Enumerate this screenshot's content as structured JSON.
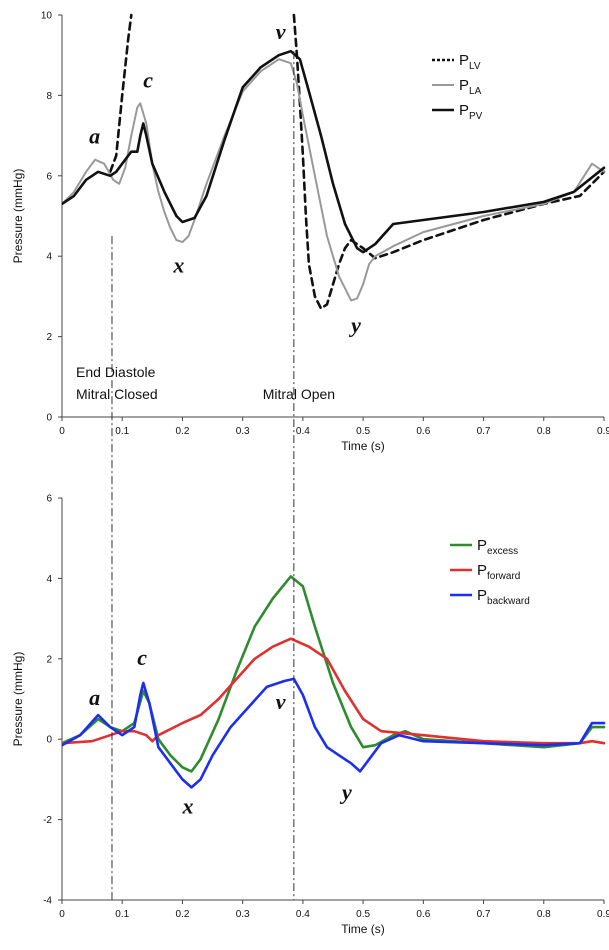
{
  "chart_data": [
    {
      "type": "line",
      "xlabel": "Time (s)",
      "ylabel": "Pressure (mmHg)",
      "xlim": [
        0,
        0.9
      ],
      "ylim": [
        0,
        10
      ],
      "xticks": [
        "0",
        "0.1",
        "0.2",
        "0.3",
        "0.4",
        "0.5",
        "0.6",
        "0.7",
        "0.8",
        "0.9"
      ],
      "yticks": [
        "0",
        "2",
        "4",
        "6",
        "8",
        "10"
      ],
      "series": [
        {
          "name": "P",
          "sub": "LV",
          "color": "#111111",
          "style": "dashed",
          "points": [
            [
              0.08,
              6.1
            ],
            [
              0.09,
              6.5
            ],
            [
              0.1,
              8.0
            ],
            [
              0.11,
              9.4
            ],
            [
              0.115,
              10.0
            ]
          ],
          "points2": [
            [
              0.385,
              10.0
            ],
            [
              0.39,
              9.0
            ],
            [
              0.395,
              7.8
            ],
            [
              0.4,
              6.5
            ],
            [
              0.405,
              5.0
            ],
            [
              0.41,
              3.8
            ],
            [
              0.42,
              3.0
            ],
            [
              0.43,
              2.7
            ],
            [
              0.44,
              2.8
            ],
            [
              0.45,
              3.3
            ],
            [
              0.46,
              3.8
            ],
            [
              0.47,
              4.2
            ],
            [
              0.48,
              4.4
            ],
            [
              0.5,
              4.2
            ],
            [
              0.52,
              3.95
            ],
            [
              0.55,
              4.1
            ],
            [
              0.6,
              4.4
            ],
            [
              0.7,
              4.9
            ],
            [
              0.8,
              5.3
            ],
            [
              0.86,
              5.5
            ],
            [
              0.9,
              6.1
            ]
          ]
        },
        {
          "name": "P",
          "sub": "LA",
          "color": "#999999",
          "style": "solid",
          "points": [
            [
              0.0,
              5.3
            ],
            [
              0.02,
              5.6
            ],
            [
              0.04,
              6.1
            ],
            [
              0.055,
              6.4
            ],
            [
              0.07,
              6.3
            ],
            [
              0.085,
              5.9
            ],
            [
              0.095,
              5.8
            ],
            [
              0.105,
              6.2
            ],
            [
              0.115,
              7.0
            ],
            [
              0.125,
              7.7
            ],
            [
              0.13,
              7.8
            ],
            [
              0.14,
              7.3
            ],
            [
              0.15,
              6.3
            ],
            [
              0.16,
              5.6
            ],
            [
              0.17,
              5.1
            ],
            [
              0.18,
              4.7
            ],
            [
              0.19,
              4.4
            ],
            [
              0.2,
              4.35
            ],
            [
              0.21,
              4.5
            ],
            [
              0.22,
              4.9
            ],
            [
              0.24,
              5.8
            ],
            [
              0.27,
              7.0
            ],
            [
              0.3,
              8.1
            ],
            [
              0.33,
              8.6
            ],
            [
              0.36,
              8.9
            ],
            [
              0.38,
              8.8
            ],
            [
              0.39,
              8.3
            ],
            [
              0.4,
              7.5
            ],
            [
              0.42,
              6.0
            ],
            [
              0.44,
              4.5
            ],
            [
              0.46,
              3.5
            ],
            [
              0.48,
              2.9
            ],
            [
              0.49,
              2.95
            ],
            [
              0.5,
              3.3
            ],
            [
              0.51,
              3.8
            ],
            [
              0.52,
              4.0
            ],
            [
              0.55,
              4.25
            ],
            [
              0.6,
              4.6
            ],
            [
              0.7,
              5.0
            ],
            [
              0.8,
              5.3
            ],
            [
              0.85,
              5.6
            ],
            [
              0.88,
              6.3
            ],
            [
              0.9,
              6.1
            ]
          ]
        },
        {
          "name": "P",
          "sub": "PV",
          "color": "#111111",
          "style": "solid",
          "points": [
            [
              0.0,
              5.3
            ],
            [
              0.02,
              5.5
            ],
            [
              0.04,
              5.9
            ],
            [
              0.06,
              6.1
            ],
            [
              0.08,
              6.0
            ],
            [
              0.09,
              6.1
            ],
            [
              0.1,
              6.3
            ],
            [
              0.115,
              6.6
            ],
            [
              0.125,
              6.6
            ],
            [
              0.13,
              7.0
            ],
            [
              0.135,
              7.3
            ],
            [
              0.14,
              7.0
            ],
            [
              0.15,
              6.3
            ],
            [
              0.17,
              5.6
            ],
            [
              0.19,
              5.0
            ],
            [
              0.2,
              4.85
            ],
            [
              0.22,
              4.95
            ],
            [
              0.24,
              5.5
            ],
            [
              0.27,
              6.9
            ],
            [
              0.3,
              8.2
            ],
            [
              0.33,
              8.7
            ],
            [
              0.36,
              9.0
            ],
            [
              0.38,
              9.1
            ],
            [
              0.395,
              8.9
            ],
            [
              0.41,
              8.1
            ],
            [
              0.43,
              7.0
            ],
            [
              0.45,
              5.8
            ],
            [
              0.47,
              4.8
            ],
            [
              0.49,
              4.2
            ],
            [
              0.5,
              4.1
            ],
            [
              0.52,
              4.3
            ],
            [
              0.55,
              4.8
            ],
            [
              0.6,
              4.9
            ],
            [
              0.7,
              5.1
            ],
            [
              0.8,
              5.35
            ],
            [
              0.85,
              5.6
            ],
            [
              0.9,
              6.2
            ]
          ]
        }
      ],
      "wave_labels": [
        {
          "text": "a",
          "x": 0.045,
          "y": 6.8
        },
        {
          "text": "c",
          "x": 0.135,
          "y": 8.2
        },
        {
          "text": "x",
          "x": 0.185,
          "y": 3.6
        },
        {
          "text": "v",
          "x": 0.355,
          "y": 9.4
        },
        {
          "text": "y",
          "x": 0.48,
          "y": 2.1
        }
      ],
      "annotations": [
        {
          "text": "End Diastole",
          "x": 0.01,
          "y": 0.95
        },
        {
          "text": "Mitral Closed",
          "x": 0.01,
          "y": 0.4
        },
        {
          "text": "Mitral Open",
          "x": 0.32,
          "y": 0.4
        }
      ],
      "legend_position": "top-right"
    },
    {
      "type": "line",
      "xlabel": "Time (s)",
      "ylabel": "Pressure (mmHg)",
      "xlim": [
        0,
        0.9
      ],
      "ylim": [
        -4,
        6
      ],
      "xticks": [
        "0",
        "0.1",
        "0.2",
        "0.3",
        "0.4",
        "0.5",
        "0.6",
        "0.7",
        "0.8",
        "0.9"
      ],
      "yticks": [
        "-4",
        "-2",
        "0",
        "2",
        "4",
        "6"
      ],
      "series": [
        {
          "name": "P",
          "sub": "excess",
          "color": "#2e8b2e",
          "style": "solid",
          "points": [
            [
              0.0,
              -0.1
            ],
            [
              0.03,
              0.1
            ],
            [
              0.06,
              0.5
            ],
            [
              0.08,
              0.3
            ],
            [
              0.1,
              0.2
            ],
            [
              0.12,
              0.4
            ],
            [
              0.135,
              1.2
            ],
            [
              0.145,
              0.9
            ],
            [
              0.16,
              0.0
            ],
            [
              0.18,
              -0.4
            ],
            [
              0.2,
              -0.7
            ],
            [
              0.215,
              -0.8
            ],
            [
              0.23,
              -0.5
            ],
            [
              0.26,
              0.5
            ],
            [
              0.29,
              1.7
            ],
            [
              0.32,
              2.8
            ],
            [
              0.35,
              3.5
            ],
            [
              0.38,
              4.05
            ],
            [
              0.4,
              3.8
            ],
            [
              0.42,
              2.8
            ],
            [
              0.45,
              1.4
            ],
            [
              0.48,
              0.3
            ],
            [
              0.5,
              -0.2
            ],
            [
              0.52,
              -0.15
            ],
            [
              0.55,
              0.1
            ],
            [
              0.57,
              0.2
            ],
            [
              0.6,
              0.0
            ],
            [
              0.7,
              -0.1
            ],
            [
              0.8,
              -0.2
            ],
            [
              0.86,
              -0.1
            ],
            [
              0.88,
              0.3
            ],
            [
              0.9,
              0.3
            ]
          ]
        },
        {
          "name": "P",
          "sub": "forward",
          "color": "#e03030",
          "style": "solid",
          "points": [
            [
              0.0,
              -0.1
            ],
            [
              0.05,
              -0.05
            ],
            [
              0.08,
              0.1
            ],
            [
              0.1,
              0.2
            ],
            [
              0.12,
              0.2
            ],
            [
              0.14,
              0.1
            ],
            [
              0.15,
              -0.05
            ],
            [
              0.16,
              0.1
            ],
            [
              0.2,
              0.4
            ],
            [
              0.23,
              0.6
            ],
            [
              0.26,
              1.0
            ],
            [
              0.29,
              1.5
            ],
            [
              0.32,
              2.0
            ],
            [
              0.35,
              2.3
            ],
            [
              0.38,
              2.5
            ],
            [
              0.41,
              2.3
            ],
            [
              0.44,
              2.0
            ],
            [
              0.47,
              1.2
            ],
            [
              0.5,
              0.5
            ],
            [
              0.53,
              0.2
            ],
            [
              0.6,
              0.1
            ],
            [
              0.7,
              -0.05
            ],
            [
              0.8,
              -0.1
            ],
            [
              0.86,
              -0.1
            ],
            [
              0.88,
              -0.05
            ],
            [
              0.9,
              -0.1
            ]
          ]
        },
        {
          "name": "P",
          "sub": "backward",
          "color": "#1e2ef0",
          "style": "solid",
          "points": [
            [
              0.0,
              -0.15
            ],
            [
              0.03,
              0.1
            ],
            [
              0.06,
              0.6
            ],
            [
              0.08,
              0.3
            ],
            [
              0.1,
              0.1
            ],
            [
              0.12,
              0.3
            ],
            [
              0.13,
              1.1
            ],
            [
              0.135,
              1.4
            ],
            [
              0.145,
              0.9
            ],
            [
              0.16,
              -0.2
            ],
            [
              0.18,
              -0.6
            ],
            [
              0.2,
              -1.0
            ],
            [
              0.215,
              -1.2
            ],
            [
              0.23,
              -1.0
            ],
            [
              0.25,
              -0.4
            ],
            [
              0.28,
              0.3
            ],
            [
              0.31,
              0.8
            ],
            [
              0.34,
              1.3
            ],
            [
              0.37,
              1.45
            ],
            [
              0.385,
              1.5
            ],
            [
              0.4,
              1.1
            ],
            [
              0.42,
              0.3
            ],
            [
              0.44,
              -0.2
            ],
            [
              0.46,
              -0.4
            ],
            [
              0.48,
              -0.6
            ],
            [
              0.495,
              -0.8
            ],
            [
              0.51,
              -0.5
            ],
            [
              0.53,
              -0.1
            ],
            [
              0.56,
              0.1
            ],
            [
              0.6,
              -0.05
            ],
            [
              0.7,
              -0.1
            ],
            [
              0.8,
              -0.15
            ],
            [
              0.86,
              -0.1
            ],
            [
              0.88,
              0.4
            ],
            [
              0.9,
              0.4
            ]
          ]
        }
      ],
      "wave_labels": [
        {
          "text": "a",
          "x": 0.045,
          "y": 0.85
        },
        {
          "text": "c",
          "x": 0.125,
          "y": 1.85
        },
        {
          "text": "x",
          "x": 0.2,
          "y": -1.85
        },
        {
          "text": "v",
          "x": 0.355,
          "y": 0.75
        },
        {
          "text": "y",
          "x": 0.465,
          "y": -1.5
        }
      ],
      "legend_position": "top-right"
    }
  ]
}
